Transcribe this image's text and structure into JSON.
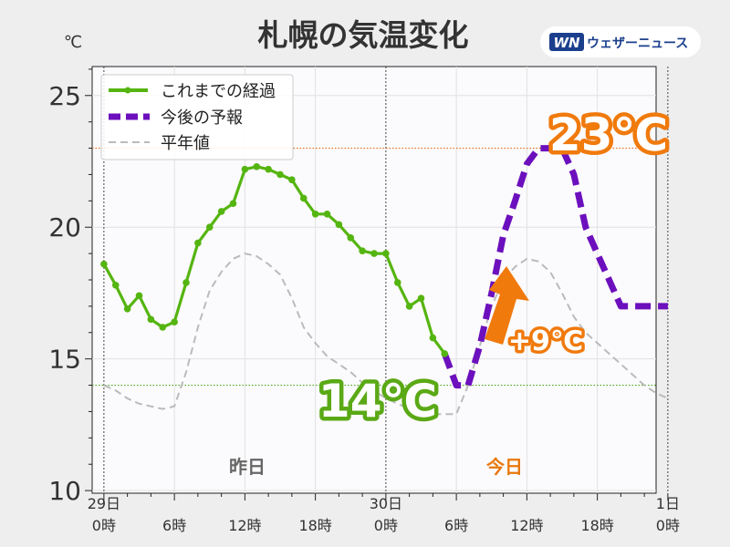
{
  "title": "札幌の気温変化",
  "brand": {
    "logo_text": "WN",
    "name": "ウェザーニュース"
  },
  "chart_data": {
    "type": "line",
    "unit_label": "℃",
    "ylim": [
      9.9,
      26.1
    ],
    "xlim": [
      -1,
      47
    ],
    "y_ticks": [
      10,
      15,
      20,
      25
    ],
    "x_ticks": [
      {
        "hour": 0,
        "day": "29日",
        "time": "0時"
      },
      {
        "hour": 6,
        "day": "",
        "time": "6時"
      },
      {
        "hour": 12,
        "day": "",
        "time": "12時"
      },
      {
        "hour": 18,
        "day": "",
        "time": "18時"
      },
      {
        "hour": 24,
        "day": "30日",
        "time": "0時"
      },
      {
        "hour": 30,
        "day": "",
        "time": "6時"
      },
      {
        "hour": 36,
        "day": "",
        "time": "12時"
      },
      {
        "hour": 42,
        "day": "",
        "time": "18時"
      },
      {
        "hour": 48,
        "day": "1日",
        "time": "0時"
      }
    ],
    "day_dividers": [
      0,
      24,
      48
    ],
    "grid": true,
    "legend_position": "top-left",
    "series": [
      {
        "name": "これまでの経過",
        "color": "#55b510",
        "style": "solid-markers",
        "x": [
          0,
          1,
          2,
          3,
          4,
          5,
          6,
          7,
          8,
          9,
          10,
          11,
          12,
          13,
          14,
          15,
          16,
          17,
          18,
          19,
          20,
          21,
          22,
          23,
          24,
          25,
          26,
          27,
          28,
          29
        ],
        "y": [
          18.6,
          17.8,
          16.9,
          17.4,
          16.5,
          16.2,
          16.4,
          17.9,
          19.4,
          20.0,
          20.6,
          20.9,
          22.2,
          22.3,
          22.2,
          22.0,
          21.8,
          21.1,
          20.5,
          20.5,
          20.1,
          19.6,
          19.1,
          19.0,
          19.0,
          17.9,
          17.0,
          17.3,
          15.8,
          15.2
        ]
      },
      {
        "name": "今後の予報",
        "color": "#6c0fbd",
        "style": "dashed",
        "x": [
          29,
          30,
          31,
          32,
          33,
          34,
          35,
          36,
          37,
          38,
          39,
          40,
          41,
          42,
          43,
          44,
          45,
          46,
          47,
          48
        ],
        "y": [
          15.2,
          14.0,
          14.0,
          15.5,
          17.5,
          19.7,
          21.0,
          22.4,
          23.0,
          23.0,
          23.0,
          22.0,
          20.0,
          19.0,
          18.0,
          17.0,
          17.0,
          17.0,
          17.0,
          17.0
        ]
      },
      {
        "name": "平年値",
        "color": "#bbbbbb",
        "style": "dashed-thin",
        "x": [
          0,
          1,
          2,
          3,
          4,
          5,
          6,
          7,
          8,
          9,
          10,
          11,
          12,
          13,
          14,
          15,
          16,
          17,
          18,
          19,
          20,
          21,
          22,
          23,
          24,
          25,
          26,
          27,
          28,
          29,
          30,
          31,
          32,
          33,
          34,
          35,
          36,
          37,
          38,
          39,
          40,
          41,
          42,
          43,
          44,
          45,
          46,
          47,
          48
        ],
        "y": [
          14.0,
          13.8,
          13.5,
          13.3,
          13.2,
          13.1,
          13.2,
          14.5,
          16.2,
          17.6,
          18.3,
          18.8,
          19.0,
          18.9,
          18.6,
          18.2,
          17.3,
          16.2,
          15.6,
          15.1,
          14.8,
          14.5,
          14.1,
          13.8,
          13.5,
          13.3,
          13.1,
          13.0,
          12.9,
          12.9,
          12.9,
          14.0,
          15.5,
          17.0,
          18.0,
          18.5,
          18.8,
          18.7,
          18.3,
          17.5,
          16.6,
          16.0,
          15.6,
          15.2,
          14.8,
          14.4,
          14.0,
          13.7,
          13.5
        ]
      }
    ],
    "reference_lines": [
      {
        "value": 23,
        "color": "#e86a10"
      },
      {
        "value": 14,
        "color": "#49a81a"
      }
    ],
    "annotations": {
      "max_label": "23℃",
      "max_color": "#f07a0c",
      "min_label": "14℃",
      "min_color": "#5aa915",
      "rise_label": "+9℃",
      "rise_color": "#f07a0c",
      "yesterday_label": "昨日",
      "yesterday_color": "#666666",
      "today_label": "今日",
      "today_color": "#e8780c"
    }
  }
}
